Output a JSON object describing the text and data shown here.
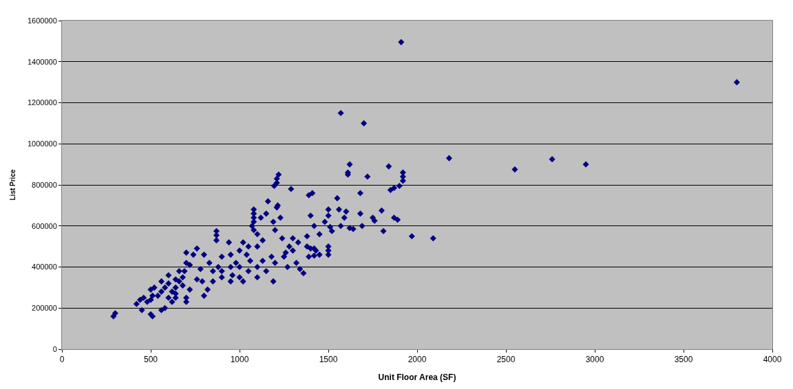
{
  "chart_data": {
    "type": "scatter",
    "xlabel": "Unit Floor Area (SF)",
    "ylabel": "List Price",
    "xlim": [
      0,
      4000
    ],
    "xticks": [
      0,
      500,
      1000,
      1500,
      2000,
      2500,
      3000,
      3500,
      4000
    ],
    "ylim": [
      0,
      1600000
    ],
    "yticks": [
      0,
      200000,
      400000,
      600000,
      800000,
      1000000,
      1200000,
      1400000,
      1600000
    ],
    "grid": "y",
    "marker": "diamond",
    "series": [
      {
        "color": "#000080",
        "x": [
          1910,
          3800,
          1570,
          1700,
          2180,
          2550,
          2760,
          2950,
          1620,
          1610,
          1610,
          1720,
          1840,
          1920,
          1920,
          1920,
          1900,
          1870,
          1850,
          1970,
          2090,
          1810,
          1800,
          1760,
          1750,
          1870,
          1890,
          1680,
          1680,
          1690,
          1640,
          1620,
          1550,
          1560,
          1600,
          1590,
          1570,
          1520,
          1510,
          1500,
          1500,
          1480,
          1500,
          1500,
          1500,
          1450,
          1420,
          1410,
          1390,
          1400,
          1380,
          1380,
          1400,
          1420,
          1430,
          1450,
          1420,
          1390,
          1360,
          1340,
          1330,
          1300,
          1290,
          1280,
          1260,
          1270,
          1240,
          1220,
          1210,
          1210,
          1195,
          1215,
          1210,
          1230,
          1190,
          1200,
          1180,
          1190,
          1160,
          1150,
          1120,
          1080,
          1080,
          1080,
          1080,
          1070,
          1080,
          1100,
          1130,
          1100,
          1050,
          1040,
          1020,
          1000,
          980,
          960,
          950,
          940,
          900,
          880,
          870,
          870,
          870,
          850,
          830,
          800,
          790,
          760,
          740,
          720,
          700,
          700,
          690,
          680,
          660,
          640,
          620,
          600,
          600,
          580,
          560,
          540,
          520,
          500,
          510,
          500,
          480,
          460,
          440,
          420,
          450,
          500,
          510,
          560,
          580,
          300,
          290,
          640,
          660,
          700,
          700,
          720,
          800,
          820,
          850,
          900,
          950,
          1000,
          1020,
          1050,
          1100,
          1130,
          1150,
          1200,
          1250,
          1300,
          1320,
          1000,
          1060,
          1100,
          900,
          950,
          600,
          640,
          620,
          680,
          760,
          780,
          560,
          640
        ],
        "values": [
          1495000,
          1300000,
          1150000,
          1100000,
          930000,
          875000,
          925000,
          900000,
          900000,
          860000,
          850000,
          840000,
          890000,
          860000,
          840000,
          820000,
          795000,
          785000,
          775000,
          550000,
          540000,
          575000,
          675000,
          625000,
          640000,
          640000,
          630000,
          760000,
          660000,
          600000,
          585000,
          590000,
          735000,
          680000,
          670000,
          640000,
          600000,
          575000,
          595000,
          680000,
          650000,
          620000,
          500000,
          480000,
          460000,
          560000,
          600000,
          760000,
          750000,
          650000,
          550000,
          500000,
          490000,
          490000,
          480000,
          460000,
          455000,
          450000,
          370000,
          390000,
          520000,
          540000,
          780000,
          500000,
          470000,
          400000,
          540000,
          850000,
          830000,
          810000,
          795000,
          700000,
          690000,
          640000,
          620000,
          580000,
          450000,
          330000,
          720000,
          660000,
          640000,
          680000,
          660000,
          640000,
          620000,
          600000,
          580000,
          560000,
          530000,
          500000,
          500000,
          460000,
          520000,
          480000,
          420000,
          360000,
          330000,
          520000,
          450000,
          400000,
          575000,
          555000,
          530000,
          380000,
          420000,
          460000,
          330000,
          490000,
          460000,
          410000,
          470000,
          420000,
          380000,
          350000,
          330000,
          300000,
          280000,
          360000,
          320000,
          300000,
          280000,
          260000,
          300000,
          290000,
          260000,
          240000,
          230000,
          250000,
          240000,
          220000,
          190000,
          170000,
          160000,
          190000,
          200000,
          175000,
          160000,
          340000,
          380000,
          250000,
          230000,
          290000,
          260000,
          290000,
          330000,
          380000,
          400000,
          350000,
          330000,
          380000,
          400000,
          430000,
          380000,
          420000,
          450000,
          480000,
          420000,
          400000,
          430000,
          350000,
          350000,
          460000,
          250000,
          250000,
          230000,
          310000,
          340000,
          390000,
          330000,
          270000
        ]
      }
    ]
  }
}
